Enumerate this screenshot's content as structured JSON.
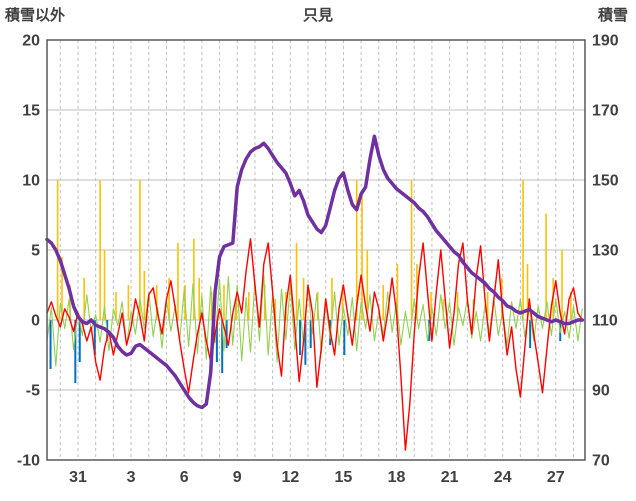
{
  "title": "只見",
  "left_axis_label": "積雪以外",
  "right_axis_label": "積雪",
  "colors": {
    "grid": "#bfbfbf",
    "frame": "#595959",
    "snow_depth": "#7030a0",
    "red_series": "#ff0000",
    "orange_series": "#ffc000",
    "green_series": "#92d050",
    "blue_series": "#0070c0",
    "label_text": "#404040"
  },
  "chart_data": {
    "type": "line",
    "title": "只見",
    "left_axis_title": "積雪以外",
    "right_axis_title": "積雪",
    "x_range": [
      0,
      30.4
    ],
    "x_grid": {
      "start": 0.75,
      "step": 1
    },
    "grid_color": "#bfbfbf",
    "frame_color": "#595959",
    "left_axis": {
      "min": -10,
      "max": 20,
      "ticks": [
        20,
        15,
        10,
        5,
        0,
        -5,
        -10
      ]
    },
    "right_axis": {
      "min": 70,
      "max": 190,
      "ticks": [
        190,
        170,
        150,
        130,
        110,
        90,
        70
      ]
    },
    "x_ticks": [
      {
        "x": 1.75,
        "label": "31"
      },
      {
        "x": 4.75,
        "label": "3"
      },
      {
        "x": 7.75,
        "label": "6"
      },
      {
        "x": 10.75,
        "label": "9"
      },
      {
        "x": 13.75,
        "label": "12"
      },
      {
        "x": 16.75,
        "label": "15"
      },
      {
        "x": 19.75,
        "label": "18"
      },
      {
        "x": 22.75,
        "label": "21"
      },
      {
        "x": 25.75,
        "label": "24"
      },
      {
        "x": 28.75,
        "label": "27"
      }
    ],
    "series": [
      {
        "name": "orange-spikes",
        "axis": "left",
        "type": "spike",
        "color": "#ffc000",
        "width": 1.6,
        "points": [
          [
            0.6,
            10
          ],
          [
            0.85,
            4.5
          ],
          [
            1.3,
            2.5
          ],
          [
            2.1,
            3
          ],
          [
            3.0,
            10
          ],
          [
            3.25,
            5
          ],
          [
            3.9,
            2
          ],
          [
            4.6,
            2.5
          ],
          [
            5.25,
            10
          ],
          [
            5.5,
            3.5
          ],
          [
            6.2,
            2.5
          ],
          [
            6.9,
            3
          ],
          [
            7.4,
            5.5
          ],
          [
            7.8,
            2.5
          ],
          [
            8.3,
            5.8
          ],
          [
            8.6,
            3
          ],
          [
            9.3,
            2
          ],
          [
            10.0,
            2.5
          ],
          [
            10.7,
            1.5
          ],
          [
            11.4,
            2
          ],
          [
            12.3,
            2.5
          ],
          [
            12.9,
            1.5
          ],
          [
            13.5,
            2
          ],
          [
            14.1,
            5.5
          ],
          [
            14.5,
            3
          ],
          [
            15.3,
            2
          ],
          [
            16.1,
            3
          ],
          [
            16.7,
            2.5
          ],
          [
            17.5,
            10
          ],
          [
            17.8,
            9
          ],
          [
            18.1,
            5
          ],
          [
            19.0,
            2.5
          ],
          [
            19.8,
            4
          ],
          [
            20.6,
            10
          ],
          [
            20.9,
            4
          ],
          [
            21.7,
            2
          ],
          [
            22.4,
            1.5
          ],
          [
            23.2,
            2
          ],
          [
            24.1,
            1.5
          ],
          [
            24.9,
            2
          ],
          [
            25.7,
            3
          ],
          [
            26.9,
            10
          ],
          [
            27.15,
            4
          ],
          [
            28.2,
            7.6
          ],
          [
            28.6,
            3
          ],
          [
            29.1,
            5
          ],
          [
            29.6,
            2
          ]
        ]
      },
      {
        "name": "blue-spikes",
        "axis": "left",
        "type": "spike",
        "color": "#0070c0",
        "width": 2,
        "points": [
          [
            0.2,
            -3.5
          ],
          [
            1.6,
            -4.5
          ],
          [
            1.85,
            -3
          ],
          [
            2.7,
            -2.5
          ],
          [
            3.4,
            -1.5
          ],
          [
            9.6,
            -3
          ],
          [
            9.9,
            -3.8
          ],
          [
            10.15,
            -2
          ],
          [
            14.3,
            -2.5
          ],
          [
            14.6,
            -3.2
          ],
          [
            14.9,
            -2
          ],
          [
            16.0,
            -1.8
          ],
          [
            16.8,
            -2.5
          ],
          [
            21.6,
            -1.5
          ],
          [
            27.3,
            -2
          ],
          [
            29.0,
            -1.5
          ]
        ]
      },
      {
        "name": "green-line",
        "axis": "left",
        "type": "line",
        "color": "#92d050",
        "width": 1.1,
        "x_start": 0,
        "x_step": 0.25,
        "values": [
          -1.5,
          0.9,
          -3.3,
          1.2,
          -0.6,
          1.5,
          -2.1,
          0.6,
          -1.1,
          1.8,
          -0.8,
          0.4,
          -1.6,
          1.0,
          -2.2,
          0.8,
          -0.4,
          1.3,
          -1.8,
          0.6,
          -1.0,
          1.5,
          -0.6,
          2.0,
          -1.2,
          0.9,
          -2.0,
          1.4,
          -0.8,
          1.1,
          -1.5,
          2.2,
          -1.9,
          2.6,
          -2.4,
          1.8,
          -2.8,
          2.4,
          -1.6,
          2.9,
          -2.2,
          3.1,
          -1.8,
          2.5,
          -2.9,
          1.6,
          -2.3,
          2.8,
          -1.5,
          3.2,
          -2.5,
          1.9,
          -3.0,
          2.2,
          -1.4,
          2.6,
          -2.1,
          1.5,
          -1.8,
          2.4,
          -1.0,
          1.9,
          -2.4,
          1.2,
          -1.3,
          2.0,
          -1.8,
          0.9,
          -1.1,
          1.6,
          -2.2,
          1.3,
          -0.6,
          1.8,
          -1.5,
          0.6,
          -1.1,
          2.0,
          -0.9,
          1.3,
          -1.8,
          0.6,
          -1.3,
          1.5,
          -0.6,
          1.1,
          -1.5,
          0.9,
          -1.1,
          1.8,
          -0.6,
          1.3,
          -1.8,
          0.9,
          -0.4,
          1.5,
          -1.3,
          0.6,
          -1.5,
          1.1,
          -0.9,
          1.5,
          -1.1,
          0.6,
          -1.8,
          1.3,
          -0.6,
          1.5,
          -1.2,
          0.9,
          -1.5,
          1.0,
          -0.6,
          1.3,
          -1.1,
          1.5,
          -0.9,
          0.6,
          -1.3,
          1.0,
          -1.5,
          0.8
        ]
      },
      {
        "name": "red-line",
        "axis": "left",
        "type": "line",
        "color": "#ff0000",
        "width": 1.4,
        "x_start": 0,
        "x_step": 0.25,
        "values": [
          0.5,
          1.3,
          0.3,
          -0.5,
          0.8,
          0.2,
          -0.8,
          0.5,
          -0.3,
          -1.5,
          -0.5,
          -3.0,
          -4.3,
          -2.0,
          -0.8,
          -2.5,
          -1.0,
          0.5,
          -1.8,
          -0.5,
          1.5,
          0.3,
          -1.5,
          1.8,
          2.3,
          0.5,
          -1.0,
          1.5,
          2.8,
          0.8,
          -1.5,
          -3.5,
          -5.2,
          -3.0,
          -1.0,
          0.5,
          -1.5,
          -3.0,
          -1.0,
          0.8,
          -0.5,
          -1.8,
          0.5,
          2.0,
          0.5,
          3.5,
          5.8,
          2.5,
          -0.5,
          4.0,
          5.5,
          2.0,
          -1.8,
          -4.0,
          1.0,
          3.2,
          -0.5,
          -4.4,
          -1.5,
          2.5,
          0.5,
          -4.8,
          -2.0,
          1.5,
          -0.8,
          -2.5,
          0.8,
          2.5,
          0.3,
          -1.8,
          1.0,
          3.2,
          1.0,
          -0.8,
          2.0,
          0.8,
          -1.5,
          0.5,
          3.0,
          0.5,
          -4.0,
          -9.3,
          -6.0,
          -1.0,
          3.0,
          5.5,
          2.0,
          -1.5,
          2.0,
          5.0,
          1.5,
          -2.0,
          0.5,
          4.0,
          5.5,
          1.5,
          -1.0,
          3.0,
          5.3,
          1.5,
          -1.5,
          1.5,
          4.3,
          0.5,
          -2.5,
          -0.5,
          -3.5,
          -5.5,
          -2.0,
          1.5,
          -1.0,
          -3.0,
          -5.2,
          -2.0,
          1.0,
          2.8,
          0.5,
          -1.0,
          1.5,
          2.3,
          0.5,
          0.0
        ]
      },
      {
        "name": "snow-depth",
        "axis": "right",
        "type": "line",
        "color": "#7030a0",
        "width": 3.5,
        "x_start": 0,
        "x_step": 0.25,
        "values": [
          133,
          132,
          130,
          127,
          123,
          119,
          114,
          111,
          109.5,
          109,
          110,
          108.5,
          108,
          107.5,
          106.5,
          105,
          102.5,
          101,
          100,
          100.5,
          102.5,
          103,
          102,
          101,
          100,
          99,
          98,
          97,
          95.5,
          94,
          92,
          90,
          88,
          86.5,
          85.5,
          85,
          86,
          95,
          118,
          128,
          131,
          131.5,
          132,
          148,
          153,
          156,
          158,
          159,
          159.5,
          160.5,
          159,
          157,
          155,
          153.5,
          152,
          149,
          145.5,
          147,
          144,
          140,
          138,
          136,
          135,
          137,
          142,
          147,
          150.5,
          152,
          147,
          143,
          141.5,
          146,
          148,
          156,
          162.5,
          157,
          153,
          150.5,
          149,
          147.5,
          146.5,
          145.5,
          144.5,
          143.5,
          142,
          141,
          139.5,
          137.5,
          135.5,
          134,
          132.5,
          131,
          129.5,
          128.5,
          126.5,
          125,
          123.5,
          122.5,
          121.5,
          120.5,
          119,
          118,
          116.5,
          115.5,
          114,
          113.5,
          112.5,
          112,
          112.5,
          113,
          112,
          111,
          110.5,
          110,
          109.5,
          110,
          109.5,
          109,
          109,
          109.5,
          110,
          110
        ]
      }
    ]
  }
}
